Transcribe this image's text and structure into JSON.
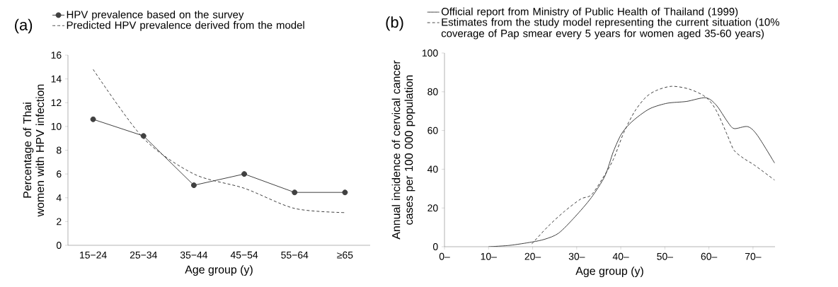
{
  "chart_data": [
    {
      "type": "line",
      "title": "(a)",
      "xlabel": "Age group (y)",
      "ylabel": "Percentage of Thai women with HPV infection",
      "categories": [
        "15−24",
        "25−34",
        "35−44",
        "45−54",
        "55−64",
        "≥65"
      ],
      "series": [
        {
          "name": "HPV prevalence based on the survey",
          "color": "#404040",
          "values": [
            10.6,
            9.2,
            5.05,
            6.0,
            4.45,
            4.45
          ],
          "marker": "circle",
          "line_style": "solid"
        },
        {
          "name": "Predicted HPV prevalence derived from the model",
          "color": "#404040",
          "values": [
            14.8,
            9.0,
            6.0,
            4.8,
            3.1,
            2.75
          ],
          "marker": "none",
          "line_style": "dashed"
        }
      ],
      "ylim": [
        0,
        16
      ],
      "yticks": [
        0,
        2,
        4,
        6,
        8,
        10,
        12,
        14,
        16
      ],
      "legend": "top",
      "grid": false
    },
    {
      "type": "line",
      "title": "(b)",
      "xlabel": "Age group (y)",
      "ylabel": "Annual incidence of cervical cancer cases per 100 000 population",
      "series": [
        {
          "name": "Official report from Ministry of Public Health of Thailand (1999)",
          "color": "#404040",
          "line_style": "solid",
          "marker": "none",
          "x": [
            10,
            14.8,
            19.8,
            22.8,
            25.9,
            29.6,
            33.3,
            36.4,
            38.3,
            40.1,
            42,
            44.4,
            46.9,
            50.6,
            54.9,
            59.3,
            61.7,
            64.2,
            65.7,
            68.8,
            71,
            74.9
          ],
          "values": [
            0,
            0.7,
            2.4,
            3.9,
            7,
            15.4,
            25.3,
            36.5,
            49,
            58,
            63.4,
            68,
            71.6,
            74.1,
            75,
            76.9,
            73,
            64.6,
            61,
            62,
            57.5,
            43.2
          ]
        },
        {
          "name": "Estimates from the study model representing the current situation (10% coverage of Pap smear every 5 years for women aged 35-60 years)",
          "color": "#404040",
          "line_style": "dashed",
          "marker": "none",
          "x": [
            19.8,
            23.5,
            27.2,
            30.9,
            33.3,
            35.8,
            38.3,
            40.7,
            43.2,
            45.7,
            48.1,
            51.5,
            55.5,
            59.3,
            61.7,
            64.2,
            65.7,
            67.9,
            70.4,
            74.9
          ],
          "values": [
            1.4,
            10.5,
            18.2,
            24.6,
            26.7,
            35,
            45,
            59,
            70,
            77.2,
            80.7,
            82.8,
            81.4,
            77.2,
            70.2,
            57.5,
            49.8,
            45.6,
            42,
            34.4
          ]
        }
      ],
      "xlim": [
        0,
        75
      ],
      "xticks": [
        {
          "value": 0,
          "label": "0–"
        },
        {
          "value": 10,
          "label": "10–"
        },
        {
          "value": 20,
          "label": "20–"
        },
        {
          "value": 30,
          "label": "30–"
        },
        {
          "value": 40,
          "label": "40–"
        },
        {
          "value": 50,
          "label": "50–"
        },
        {
          "value": 60,
          "label": "60–"
        },
        {
          "value": 70,
          "label": "70–"
        }
      ],
      "ylim": [
        0,
        100
      ],
      "yticks": [
        0,
        20,
        40,
        60,
        80,
        100
      ],
      "legend": "top",
      "grid": false
    }
  ]
}
